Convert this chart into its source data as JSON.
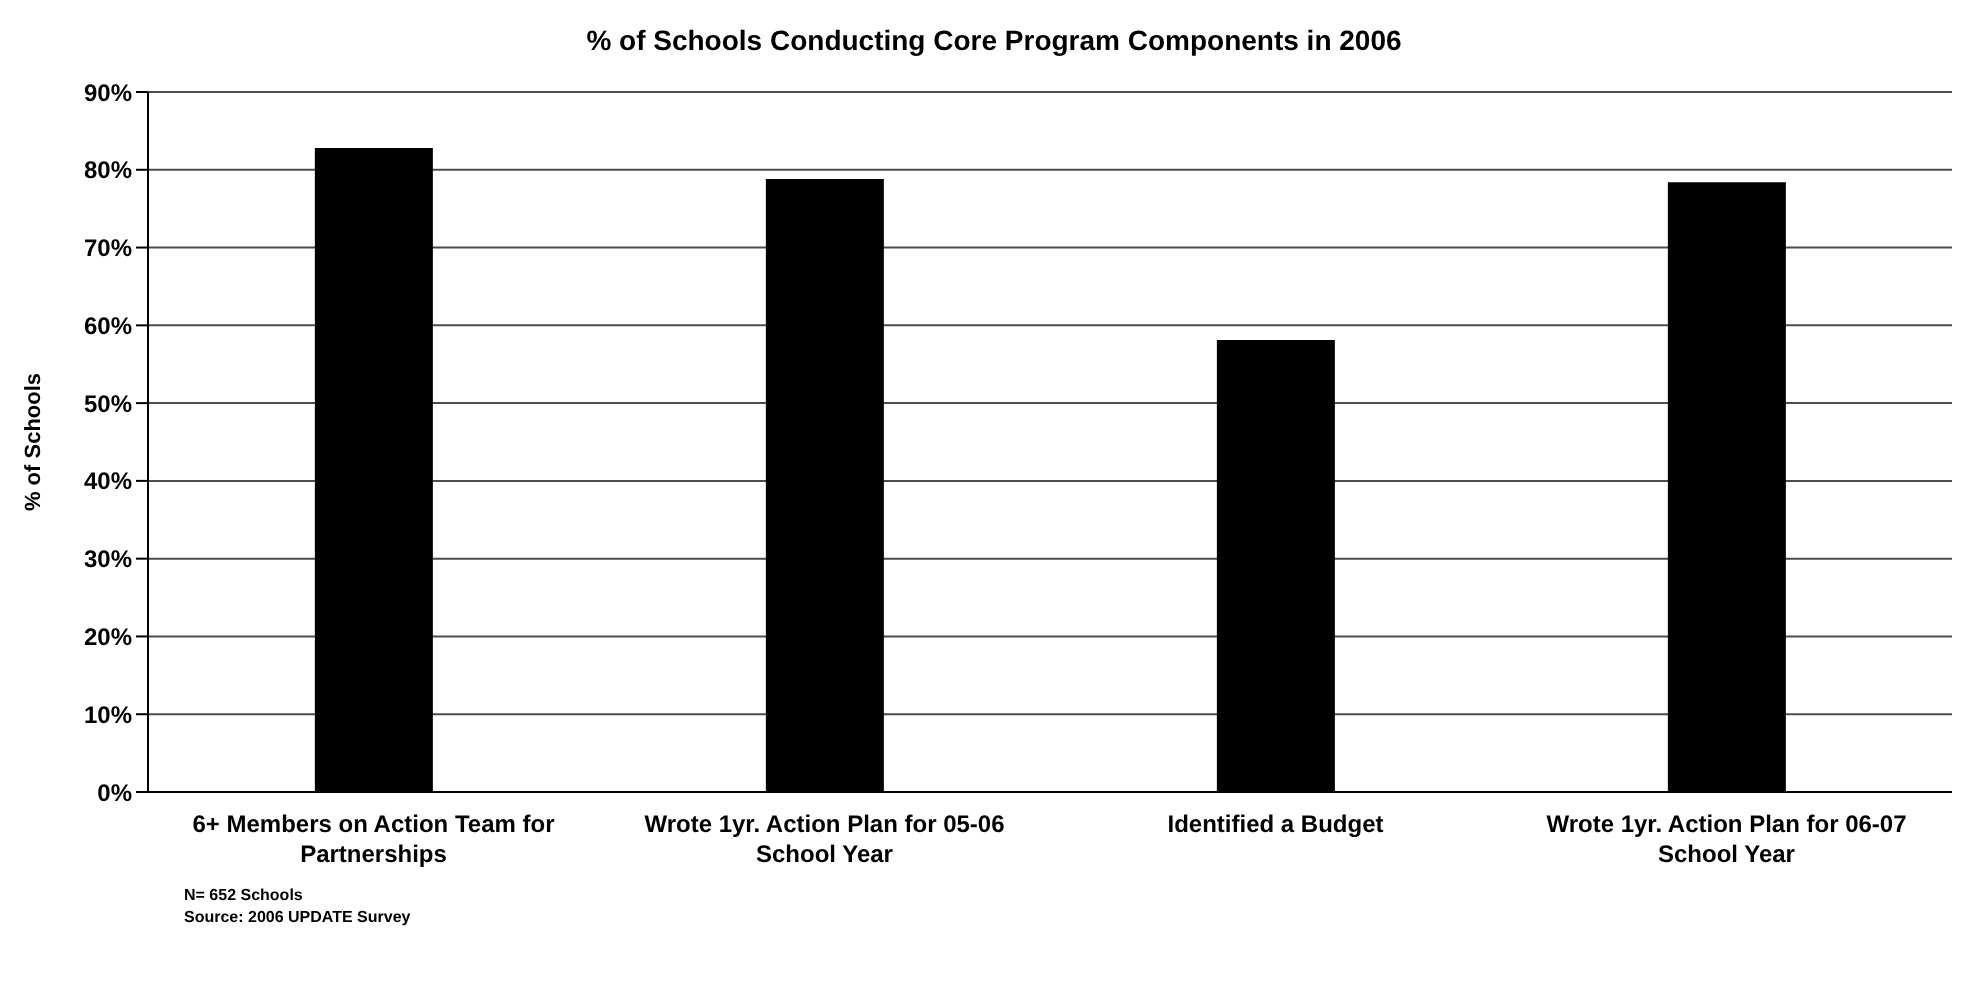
{
  "chart_data": {
    "type": "bar",
    "title": "% of Schools Conducting Core Program Components in 2006",
    "ylabel": "% of Schools",
    "categories": [
      "6+ Members on Action Team for Partnerships",
      "Wrote 1yr. Action Plan for 05-06 School Year",
      "Identified a Budget",
      "Wrote 1yr. Action Plan for 06-07 School Year"
    ],
    "values": [
      82.8,
      78.8,
      58.1,
      78.4
    ],
    "color": "#000000",
    "ylim": [
      0,
      90
    ],
    "yticks": [
      {
        "value": 0,
        "label": "0%"
      },
      {
        "value": 10,
        "label": "10%"
      },
      {
        "value": 20,
        "label": "20%"
      },
      {
        "value": 30,
        "label": "30%"
      },
      {
        "value": 40,
        "label": "40%"
      },
      {
        "value": 50,
        "label": "50%"
      },
      {
        "value": 60,
        "label": "60%"
      },
      {
        "value": 70,
        "label": "70%"
      },
      {
        "value": 80,
        "label": "80%"
      },
      {
        "value": 90,
        "label": "90%"
      }
    ],
    "grid": "y",
    "annotations": [
      "N= 652 Schools",
      "Source: 2006 UPDATE Survey"
    ]
  }
}
